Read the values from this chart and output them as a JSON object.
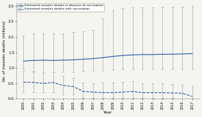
{
  "years": [
    2000,
    2001,
    2002,
    2003,
    2004,
    2005,
    2006,
    2007,
    2008,
    2009,
    2010,
    2011,
    2012,
    2013,
    2014,
    2015,
    2016,
    2017
  ],
  "no_vacc_mean": [
    1.22,
    1.24,
    1.25,
    1.24,
    1.25,
    1.26,
    1.28,
    1.3,
    1.33,
    1.37,
    1.4,
    1.42,
    1.43,
    1.43,
    1.44,
    1.44,
    1.45,
    1.46
  ],
  "no_vacc_upper": [
    2.05,
    2.1,
    2.12,
    2.1,
    2.12,
    2.15,
    2.18,
    2.22,
    2.6,
    2.85,
    2.92,
    2.95,
    2.95,
    2.95,
    2.97,
    2.97,
    2.98,
    3.0
  ],
  "no_vacc_lower": [
    0.95,
    0.9,
    0.88,
    0.87,
    0.88,
    0.88,
    0.9,
    0.91,
    0.92,
    0.93,
    0.95,
    0.95,
    0.95,
    0.95,
    0.95,
    0.95,
    0.95,
    0.95
  ],
  "with_vacc_mean": [
    0.54,
    0.53,
    0.5,
    0.53,
    0.43,
    0.4,
    0.24,
    0.22,
    0.2,
    0.2,
    0.22,
    0.24,
    0.2,
    0.2,
    0.2,
    0.19,
    0.18,
    0.08
  ],
  "with_vacc_upper": [
    0.9,
    0.88,
    0.82,
    0.87,
    0.75,
    0.68,
    0.52,
    0.5,
    0.52,
    0.52,
    0.55,
    0.56,
    0.5,
    0.5,
    0.5,
    0.48,
    0.46,
    0.4
  ],
  "with_vacc_lower": [
    0.22,
    0.21,
    0.2,
    0.21,
    0.14,
    0.15,
    0.04,
    0.04,
    0.03,
    0.03,
    0.04,
    0.04,
    0.03,
    0.03,
    0.03,
    0.03,
    0.02,
    0.01
  ],
  "solid_color": "#2255aa",
  "dashed_color": "#2255aa",
  "errorbar_color": "#adb5bd",
  "xlabel": "Year",
  "ylabel": "No. of measles deaths (millions)",
  "ylim": [
    0,
    3.1
  ],
  "yticks": [
    0,
    0.5,
    1.0,
    1.5,
    2.0,
    2.5,
    3.0
  ],
  "legend_label_solid": "Estimated measles deaths in absence of vaccination",
  "legend_label_dashed": "Estimated measles deaths with vaccination",
  "bg_color": "#f5f5f0"
}
